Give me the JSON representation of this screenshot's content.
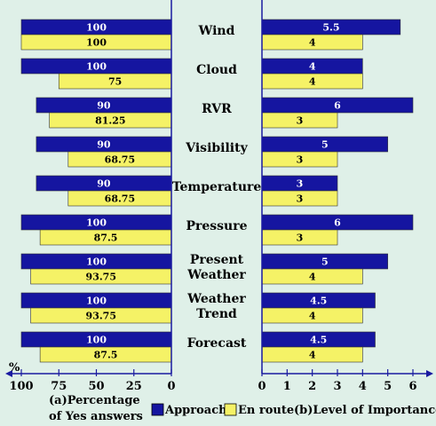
{
  "chart_data": [
    {
      "type": "bar",
      "orientation": "horizontal",
      "direction": "right-to-left",
      "caption_lines": [
        "(a)Percentage",
        "of Yes answers"
      ],
      "axis_unit": "%",
      "xlim": [
        100,
        0
      ],
      "ticks": [
        100,
        75,
        50,
        25,
        0
      ],
      "categories": [
        "Wind",
        "Cloud",
        "RVR",
        "Visibility",
        "Temperature",
        "Pressure",
        "Present Weather",
        "Weather Trend",
        "Forecast"
      ],
      "series": [
        {
          "name": "Approach",
          "color": "#1515a0",
          "values": [
            100,
            100,
            90,
            90,
            90,
            100,
            100,
            100,
            100
          ],
          "labels": [
            "100",
            "100",
            "90",
            "90",
            "90",
            "100",
            "100",
            "100",
            "100"
          ]
        },
        {
          "name": "En route",
          "color": "#f5f266",
          "values": [
            100,
            75,
            81.25,
            68.75,
            68.75,
            87.5,
            93.75,
            93.75,
            87.5
          ],
          "labels": [
            "100",
            "75",
            "81.25",
            "68.75",
            "68.75",
            "87.5",
            "93.75",
            "93.75",
            "87.5"
          ]
        }
      ]
    },
    {
      "type": "bar",
      "orientation": "horizontal",
      "caption_lines": [
        "(b)Level of Importance"
      ],
      "xlim": [
        0,
        6
      ],
      "ticks": [
        0,
        1,
        2,
        3,
        4,
        5,
        6
      ],
      "categories": [
        "Wind",
        "Cloud",
        "RVR",
        "Visibility",
        "Temperature",
        "Pressure",
        "Present Weather",
        "Weather Trend",
        "Forecast"
      ],
      "series": [
        {
          "name": "Approach",
          "color": "#1515a0",
          "values": [
            5.5,
            4,
            6,
            5,
            3,
            6,
            5,
            4.5,
            4.5
          ],
          "labels": [
            "5.5",
            "4",
            "6",
            "5",
            "3",
            "6",
            "5",
            "4.5",
            "4.5"
          ]
        },
        {
          "name": "En route",
          "color": "#f5f266",
          "values": [
            4,
            4,
            3,
            3,
            3,
            3,
            4,
            4,
            4
          ],
          "labels": [
            "4",
            "4",
            "3",
            "3",
            "3",
            "3",
            "4",
            "4",
            "4"
          ]
        }
      ]
    }
  ],
  "category_lines": [
    [
      "Wind"
    ],
    [
      "Cloud"
    ],
    [
      "RVR"
    ],
    [
      "Visibility"
    ],
    [
      "Temperature"
    ],
    [
      "Pressure"
    ],
    [
      "Present",
      "Weather"
    ],
    [
      "Weather",
      "Trend"
    ],
    [
      "Forecast"
    ]
  ],
  "legend": {
    "approach_label": "Approach",
    "enroute_label": "En route",
    "approach_color": "#1515a0",
    "enroute_color": "#f5f266"
  }
}
